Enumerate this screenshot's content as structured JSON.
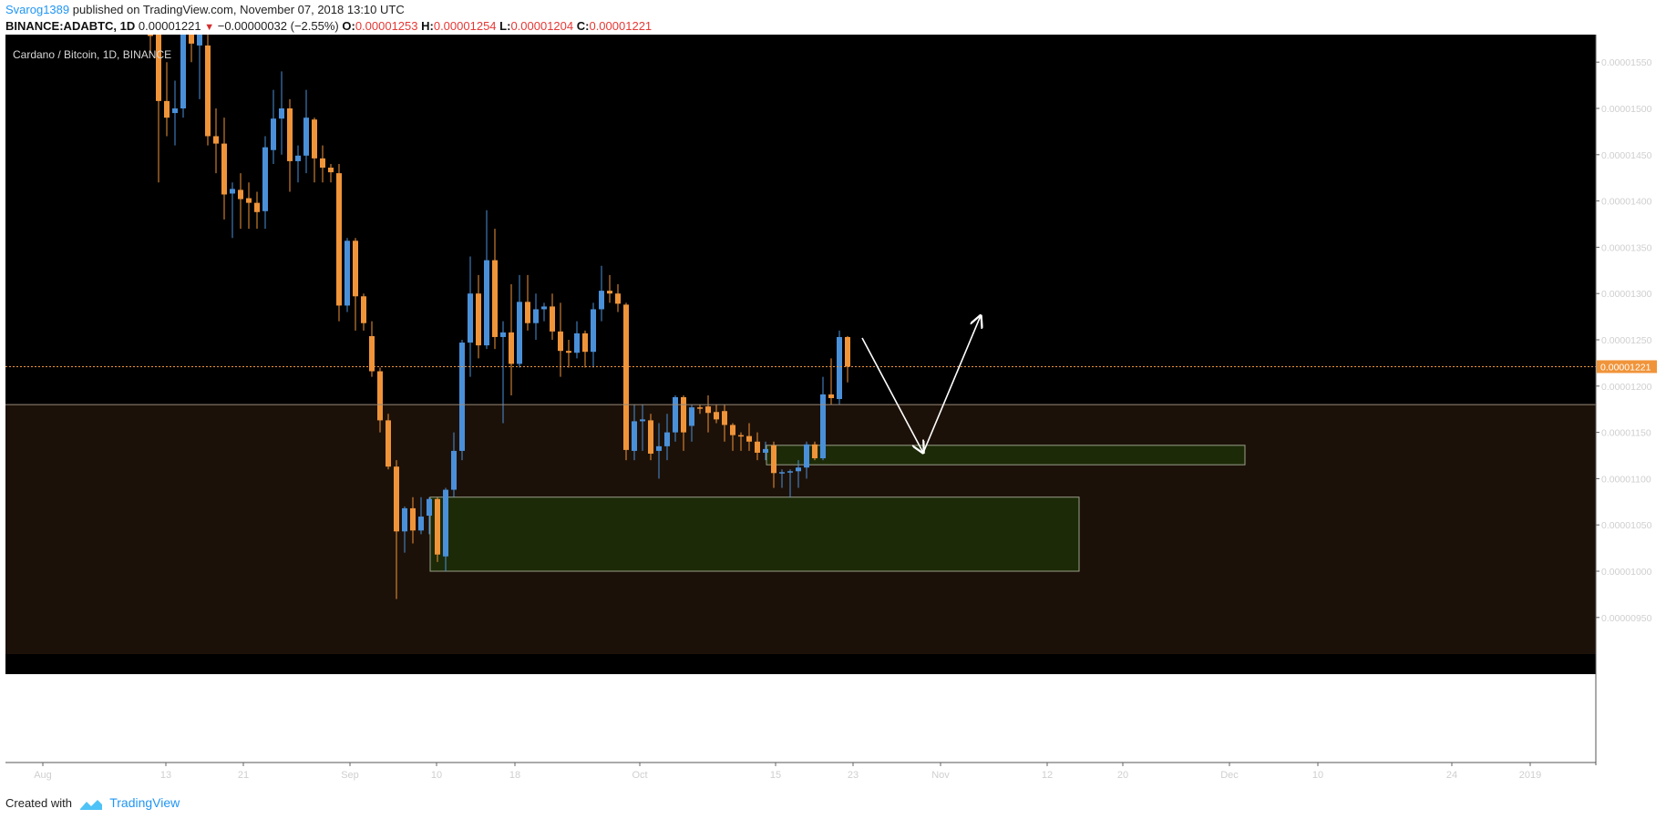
{
  "header": {
    "author": "Svarog1389",
    "published_text": "published on TradingView.com, November 07, 2018 13:10 UTC",
    "symbol": "BINANCE:ADABTC, 1D",
    "last": "0.00001221",
    "change_arrow": "▼",
    "change": "−0.00000032 (−2.55%)",
    "open_label": "O:",
    "open": "0.00001253",
    "high_label": "H:",
    "high": "0.00001254",
    "low_label": "L:",
    "low": "0.00001204",
    "close_label": "C:",
    "close": "0.00001221"
  },
  "footer": {
    "created_with": "Created with",
    "brand": "TradingView"
  },
  "chart_data": {
    "type": "candlestick",
    "title": "Cardano / Bitcoin, 1D, BINANCE",
    "ylim": [
      9.1e-06,
      1.58e-05
    ],
    "y_ticks": [
      "0.00000950",
      "0.00001000",
      "0.00001050",
      "0.00001100",
      "0.00001150",
      "0.00001200",
      "0.00001250",
      "0.00001300",
      "0.00001350",
      "0.00001400",
      "0.00001450",
      "0.00001500",
      "0.00001550"
    ],
    "x_ticks": [
      "Aug",
      "13",
      "21",
      "Sep",
      "10",
      "18",
      "Oct",
      "15",
      "23",
      "Nov",
      "12",
      "20",
      "Dec",
      "10",
      "24",
      "2019"
    ],
    "last_price_label": "0.00001221",
    "colors": {
      "up": "#4a90d9",
      "down": "#f0943a",
      "background": "#000000",
      "support_fill": "#1c1108",
      "zone_fill": "#1c2a07",
      "zone_border": "#9aa08a",
      "price_line": "#f0943a",
      "level_line": "#9a8a7a",
      "arrows": "#ffffff"
    },
    "candles": [
      {
        "o": 1.623,
        "h": 1.65,
        "l": 1.56,
        "c": 1.58
      },
      {
        "o": 1.58,
        "h": 1.6,
        "l": 1.42,
        "c": 1.508
      },
      {
        "o": 1.508,
        "h": 1.55,
        "l": 1.47,
        "c": 1.49
      },
      {
        "o": 1.495,
        "h": 1.53,
        "l": 1.46,
        "c": 1.5
      },
      {
        "o": 1.5,
        "h": 1.65,
        "l": 1.49,
        "c": 1.629
      },
      {
        "o": 1.629,
        "h": 1.65,
        "l": 1.55,
        "c": 1.57
      },
      {
        "o": 1.568,
        "h": 1.62,
        "l": 1.51,
        "c": 1.59
      },
      {
        "o": 1.568,
        "h": 1.58,
        "l": 1.46,
        "c": 1.47
      },
      {
        "o": 1.47,
        "h": 1.5,
        "l": 1.43,
        "c": 1.462
      },
      {
        "o": 1.462,
        "h": 1.49,
        "l": 1.38,
        "c": 1.407
      },
      {
        "o": 1.408,
        "h": 1.42,
        "l": 1.36,
        "c": 1.413
      },
      {
        "o": 1.412,
        "h": 1.43,
        "l": 1.37,
        "c": 1.402
      },
      {
        "o": 1.403,
        "h": 1.42,
        "l": 1.37,
        "c": 1.398
      },
      {
        "o": 1.398,
        "h": 1.41,
        "l": 1.37,
        "c": 1.388
      },
      {
        "o": 1.389,
        "h": 1.47,
        "l": 1.37,
        "c": 1.458
      },
      {
        "o": 1.455,
        "h": 1.52,
        "l": 1.44,
        "c": 1.489
      },
      {
        "o": 1.489,
        "h": 1.54,
        "l": 1.45,
        "c": 1.5
      },
      {
        "o": 1.5,
        "h": 1.51,
        "l": 1.41,
        "c": 1.443
      },
      {
        "o": 1.443,
        "h": 1.46,
        "l": 1.42,
        "c": 1.449
      },
      {
        "o": 1.449,
        "h": 1.52,
        "l": 1.43,
        "c": 1.49
      },
      {
        "o": 1.488,
        "h": 1.49,
        "l": 1.42,
        "c": 1.446
      },
      {
        "o": 1.446,
        "h": 1.46,
        "l": 1.42,
        "c": 1.436
      },
      {
        "o": 1.436,
        "h": 1.44,
        "l": 1.42,
        "c": 1.431
      },
      {
        "o": 1.43,
        "h": 1.44,
        "l": 1.27,
        "c": 1.287
      },
      {
        "o": 1.287,
        "h": 1.36,
        "l": 1.28,
        "c": 1.357
      },
      {
        "o": 1.357,
        "h": 1.36,
        "l": 1.26,
        "c": 1.297
      },
      {
        "o": 1.297,
        "h": 1.3,
        "l": 1.26,
        "c": 1.268
      },
      {
        "o": 1.254,
        "h": 1.27,
        "l": 1.21,
        "c": 1.216
      },
      {
        "o": 1.216,
        "h": 1.22,
        "l": 1.15,
        "c": 1.163
      },
      {
        "o": 1.163,
        "h": 1.17,
        "l": 1.11,
        "c": 1.113
      },
      {
        "o": 1.113,
        "h": 1.12,
        "l": 0.97,
        "c": 1.043
      },
      {
        "o": 1.043,
        "h": 1.07,
        "l": 1.02,
        "c": 1.068
      },
      {
        "o": 1.068,
        "h": 1.08,
        "l": 1.03,
        "c": 1.044
      },
      {
        "o": 1.044,
        "h": 1.08,
        "l": 1.04,
        "c": 1.059
      },
      {
        "o": 1.06,
        "h": 1.08,
        "l": 1.04,
        "c": 1.078
      },
      {
        "o": 1.078,
        "h": 1.08,
        "l": 1.01,
        "c": 1.018
      },
      {
        "o": 1.016,
        "h": 1.09,
        "l": 1.0,
        "c": 1.088
      },
      {
        "o": 1.088,
        "h": 1.15,
        "l": 1.08,
        "c": 1.13
      },
      {
        "o": 1.13,
        "h": 1.25,
        "l": 1.12,
        "c": 1.247
      },
      {
        "o": 1.247,
        "h": 1.34,
        "l": 1.21,
        "c": 1.3
      },
      {
        "o": 1.3,
        "h": 1.32,
        "l": 1.23,
        "c": 1.244
      },
      {
        "o": 1.244,
        "h": 1.39,
        "l": 1.24,
        "c": 1.336
      },
      {
        "o": 1.336,
        "h": 1.37,
        "l": 1.24,
        "c": 1.253
      },
      {
        "o": 1.253,
        "h": 1.27,
        "l": 1.16,
        "c": 1.258
      },
      {
        "o": 1.258,
        "h": 1.31,
        "l": 1.19,
        "c": 1.224
      },
      {
        "o": 1.224,
        "h": 1.32,
        "l": 1.22,
        "c": 1.291
      },
      {
        "o": 1.291,
        "h": 1.32,
        "l": 1.26,
        "c": 1.268
      },
      {
        "o": 1.268,
        "h": 1.3,
        "l": 1.25,
        "c": 1.283
      },
      {
        "o": 1.283,
        "h": 1.29,
        "l": 1.27,
        "c": 1.286
      },
      {
        "o": 1.286,
        "h": 1.3,
        "l": 1.25,
        "c": 1.259
      },
      {
        "o": 1.259,
        "h": 1.29,
        "l": 1.21,
        "c": 1.238
      },
      {
        "o": 1.238,
        "h": 1.25,
        "l": 1.22,
        "c": 1.236
      },
      {
        "o": 1.236,
        "h": 1.27,
        "l": 1.23,
        "c": 1.257
      },
      {
        "o": 1.257,
        "h": 1.26,
        "l": 1.22,
        "c": 1.237
      },
      {
        "o": 1.237,
        "h": 1.29,
        "l": 1.22,
        "c": 1.283
      },
      {
        "o": 1.283,
        "h": 1.33,
        "l": 1.27,
        "c": 1.303
      },
      {
        "o": 1.303,
        "h": 1.32,
        "l": 1.29,
        "c": 1.3
      },
      {
        "o": 1.3,
        "h": 1.31,
        "l": 1.28,
        "c": 1.289
      },
      {
        "o": 1.288,
        "h": 1.29,
        "l": 1.12,
        "c": 1.131
      },
      {
        "o": 1.13,
        "h": 1.18,
        "l": 1.12,
        "c": 1.162
      },
      {
        "o": 1.162,
        "h": 1.18,
        "l": 1.13,
        "c": 1.164
      },
      {
        "o": 1.163,
        "h": 1.17,
        "l": 1.12,
        "c": 1.127
      },
      {
        "o": 1.13,
        "h": 1.16,
        "l": 1.1,
        "c": 1.135
      },
      {
        "o": 1.135,
        "h": 1.17,
        "l": 1.12,
        "c": 1.15
      },
      {
        "o": 1.15,
        "h": 1.19,
        "l": 1.14,
        "c": 1.188
      },
      {
        "o": 1.188,
        "h": 1.19,
        "l": 1.13,
        "c": 1.15
      },
      {
        "o": 1.157,
        "h": 1.18,
        "l": 1.14,
        "c": 1.177
      },
      {
        "o": 1.177,
        "h": 1.18,
        "l": 1.17,
        "c": 1.176
      },
      {
        "o": 1.178,
        "h": 1.19,
        "l": 1.15,
        "c": 1.171
      },
      {
        "o": 1.172,
        "h": 1.18,
        "l": 1.16,
        "c": 1.164
      },
      {
        "o": 1.173,
        "h": 1.18,
        "l": 1.14,
        "c": 1.158
      },
      {
        "o": 1.158,
        "h": 1.16,
        "l": 1.13,
        "c": 1.147
      },
      {
        "o": 1.147,
        "h": 1.15,
        "l": 1.13,
        "c": 1.146
      },
      {
        "o": 1.146,
        "h": 1.16,
        "l": 1.13,
        "c": 1.14
      },
      {
        "o": 1.14,
        "h": 1.15,
        "l": 1.12,
        "c": 1.128
      },
      {
        "o": 1.128,
        "h": 1.14,
        "l": 1.12,
        "c": 1.132
      },
      {
        "o": 1.136,
        "h": 1.14,
        "l": 1.09,
        "c": 1.106
      },
      {
        "o": 1.106,
        "h": 1.11,
        "l": 1.09,
        "c": 1.107
      },
      {
        "o": 1.107,
        "h": 1.11,
        "l": 1.08,
        "c": 1.108
      },
      {
        "o": 1.108,
        "h": 1.12,
        "l": 1.09,
        "c": 1.112
      },
      {
        "o": 1.112,
        "h": 1.14,
        "l": 1.1,
        "c": 1.137
      },
      {
        "o": 1.137,
        "h": 1.14,
        "l": 1.12,
        "c": 1.122
      },
      {
        "o": 1.122,
        "h": 1.21,
        "l": 1.12,
        "c": 1.191
      },
      {
        "o": 1.191,
        "h": 1.23,
        "l": 1.18,
        "c": 1.187
      },
      {
        "o": 1.186,
        "h": 1.26,
        "l": 1.18,
        "c": 1.253
      },
      {
        "o": 1.253,
        "h": 1.254,
        "l": 1.204,
        "c": 1.221
      }
    ],
    "price_scale": 1e-05,
    "last_price": 1.221,
    "resistance_level": 1.18,
    "zones": [
      {
        "from_candle": 35,
        "to_date": "Dec 06",
        "low": 1.0,
        "high": 1.08
      },
      {
        "from_candle": 76,
        "to_date": "Dec 24",
        "low": 1.115,
        "high": 1.136
      }
    ],
    "projection": [
      {
        "date": "Nov 08",
        "price": 1.252
      },
      {
        "date": "Nov 15",
        "price": 1.128
      },
      {
        "date": "Nov 22",
        "price": 1.276
      }
    ]
  }
}
